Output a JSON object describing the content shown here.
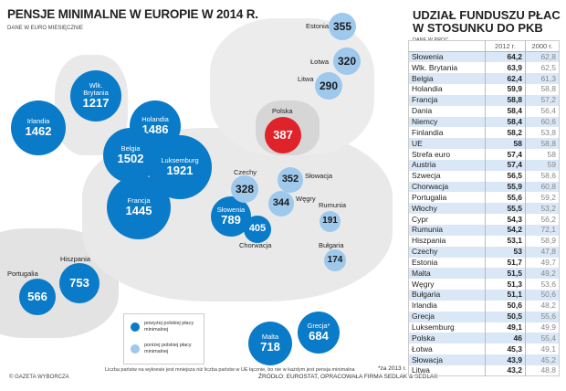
{
  "map": {
    "title": "PENSJE MINIMALNE W EUROPIE W 2014 R.",
    "subtitle": "DANE W EURO MIESIĘCZNIE",
    "countries": [
      {
        "name": "Irlandia",
        "value": "1462",
        "category": "above"
      },
      {
        "name": "Wlk. Brytania",
        "value": "1217",
        "category": "above"
      },
      {
        "name": "Holandia",
        "value": "1486",
        "category": "above"
      },
      {
        "name": "Belgia",
        "value": "1502",
        "category": "above"
      },
      {
        "name": "Luksemburg",
        "value": "1921",
        "category": "above"
      },
      {
        "name": "Francja",
        "value": "1445",
        "category": "above"
      },
      {
        "name": "Portugalia",
        "value": "566",
        "category": "above"
      },
      {
        "name": "Hiszpania",
        "value": "753",
        "category": "above"
      },
      {
        "name": "Słowenia",
        "value": "789",
        "category": "above"
      },
      {
        "name": "Chorwacja",
        "value": "405",
        "category": "above"
      },
      {
        "name": "Czechy",
        "value": "328",
        "category": "below"
      },
      {
        "name": "Polska",
        "value": "387",
        "category": "poland"
      },
      {
        "name": "Słowacja",
        "value": "352",
        "category": "below"
      },
      {
        "name": "Węgry",
        "value": "344",
        "category": "below"
      },
      {
        "name": "Rumunia",
        "value": "191",
        "category": "below"
      },
      {
        "name": "Bułgaria",
        "value": "174",
        "category": "below"
      },
      {
        "name": "Grecja*",
        "value": "684",
        "category": "above"
      },
      {
        "name": "Malta",
        "value": "718",
        "category": "above"
      },
      {
        "name": "Estonia",
        "value": "355",
        "category": "below"
      },
      {
        "name": "Łotwa",
        "value": "320",
        "category": "below"
      },
      {
        "name": "Litwa",
        "value": "290",
        "category": "below"
      }
    ],
    "legend": {
      "above": "powyżej polskiej płacy minimalnej",
      "below": "poniżej polskiej płacy minimalnej"
    },
    "note": "Liczba państw na wykresie jest mniejsza niż liczba państw w UE łącznie, bo nie w każdym jest pensja minimalna",
    "footnote": "*za 2013 r.",
    "source": "ŹRÓDŁO: EUROSTAT, OPRACOWAŁA FIRMA SEDLAK & SEDLAK",
    "copyright": "© GAZETA WYBORCZA",
    "colors": {
      "above": "#0a7bc8",
      "below": "#9ec8ec",
      "poland": "#e0232b"
    }
  },
  "table": {
    "title": "UDZIAŁ FUNDUSZU PŁAC W STOSUNKU DO PKB",
    "subtitle": "DANE W PROC.",
    "headers": [
      "2012 r.",
      "2000 r."
    ],
    "rows": [
      [
        "Słowenia",
        "64,2",
        "62,8"
      ],
      [
        "Wlk. Brytania",
        "63,9",
        "62,5"
      ],
      [
        "Belgia",
        "62,4",
        "61,3"
      ],
      [
        "Holandia",
        "59,9",
        "58,8"
      ],
      [
        "Francja",
        "58,8",
        "57,2"
      ],
      [
        "Dania",
        "58,4",
        "56,4"
      ],
      [
        "Niemcy",
        "58,4",
        "60,6"
      ],
      [
        "Finlandia",
        "58,2",
        "53,8"
      ],
      [
        "UE",
        "58",
        "58,8"
      ],
      [
        "Strefa euro",
        "57,4",
        "58"
      ],
      [
        "Austria",
        "57,4",
        "59"
      ],
      [
        "Szwecja",
        "56,5",
        "58,6"
      ],
      [
        "Chorwacja",
        "55,9",
        "60,8"
      ],
      [
        "Portugalia",
        "55,6",
        "59,2"
      ],
      [
        "Włochy",
        "55,5",
        "53,2"
      ],
      [
        "Cypr",
        "54,3",
        "56,2"
      ],
      [
        "Rumunia",
        "54,2",
        "72,1"
      ],
      [
        "Hiszpania",
        "53,1",
        "58,9"
      ],
      [
        "Czechy",
        "53",
        "47,8"
      ],
      [
        "Estonia",
        "51,7",
        "49,7"
      ],
      [
        "Malta",
        "51,5",
        "49,2"
      ],
      [
        "Węgry",
        "51,3",
        "53,6"
      ],
      [
        "Bułgaria",
        "51,1",
        "50,6"
      ],
      [
        "Irlandia",
        "50,6",
        "48,2"
      ],
      [
        "Grecja",
        "50,5",
        "55,6"
      ],
      [
        "Luksemburg",
        "49,1",
        "49,9"
      ],
      [
        "Polska",
        "46",
        "55,4"
      ],
      [
        "Łotwa",
        "45,3",
        "49,1"
      ],
      [
        "Słowacja",
        "43,9",
        "45,2"
      ],
      [
        "Litwa",
        "43,2",
        "48,8"
      ]
    ]
  }
}
